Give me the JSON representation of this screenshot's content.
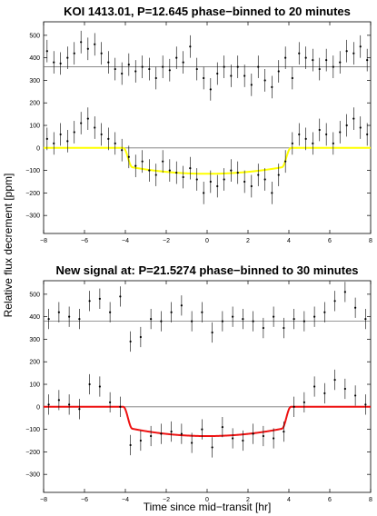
{
  "figure": {
    "ylabel": "Relative flux decrement [ppm]",
    "xlabel": "Time since mid−transit [hr]"
  },
  "chart_data": [
    {
      "type": "scatter",
      "title": "KOI 1413.01, P=12.645 phase−binned to 20 minutes",
      "xlabel": "",
      "ylabel": "Relative flux decrement [ppm]",
      "xlim": [
        -8,
        8
      ],
      "ylim": [
        -380,
        560
      ],
      "xticks": [
        "−8",
        "−6",
        "−4",
        "−2",
        "0",
        "2",
        "4",
        "6",
        "8"
      ],
      "yticks": [
        "500",
        "400",
        "300",
        "200",
        "100",
        "0",
        "−100",
        "−200",
        "−300"
      ],
      "ytick_values": [
        500,
        400,
        300,
        200,
        100,
        0,
        -100,
        -200,
        -300
      ],
      "grid": false,
      "model_color": "#ffff00",
      "model_depth": 115,
      "baselines": [
        360,
        0
      ],
      "series": [
        {
          "role": "offset residuals",
          "x": [
            -7.83,
            -7.5,
            -7.17,
            -6.83,
            -6.5,
            -6.17,
            -5.83,
            -5.5,
            -5.17,
            -4.83,
            -4.5,
            -4.17,
            -3.83,
            -3.5,
            -3.17,
            -2.83,
            -2.5,
            -2.17,
            -1.83,
            -1.5,
            -1.17,
            -0.83,
            -0.5,
            -0.17,
            0.17,
            0.5,
            0.83,
            1.17,
            1.5,
            1.83,
            2.17,
            2.5,
            2.83,
            3.17,
            3.5,
            3.83,
            4.17,
            4.5,
            4.83,
            5.17,
            5.5,
            5.83,
            6.17,
            6.5,
            6.83,
            7.17,
            7.5,
            7.83
          ],
          "y": [
            430,
            380,
            375,
            400,
            420,
            470,
            440,
            460,
            420,
            380,
            350,
            330,
            370,
            340,
            360,
            350,
            310,
            360,
            345,
            400,
            380,
            450,
            350,
            310,
            260,
            330,
            360,
            320,
            360,
            320,
            280,
            360,
            300,
            270,
            340,
            400,
            310,
            420,
            400,
            390,
            350,
            390,
            360,
            380,
            430,
            420,
            450,
            390
          ],
          "err": [
            50,
            50,
            50,
            50,
            50,
            50,
            50,
            50,
            50,
            50,
            50,
            50,
            50,
            50,
            50,
            50,
            50,
            50,
            50,
            50,
            50,
            50,
            50,
            50,
            50,
            50,
            50,
            50,
            50,
            50,
            50,
            50,
            50,
            50,
            50,
            50,
            50,
            50,
            50,
            50,
            50,
            50,
            50,
            50,
            50,
            50,
            50,
            50
          ]
        },
        {
          "role": "binned flux",
          "x": [
            -7.83,
            -7.5,
            -7.17,
            -6.83,
            -6.5,
            -6.17,
            -5.83,
            -5.5,
            -5.17,
            -4.83,
            -4.5,
            -4.17,
            -3.83,
            -3.5,
            -3.17,
            -2.83,
            -2.5,
            -2.17,
            -1.83,
            -1.5,
            -1.17,
            -0.83,
            -0.5,
            -0.17,
            0.17,
            0.5,
            0.83,
            1.17,
            1.5,
            1.83,
            2.17,
            2.5,
            2.83,
            3.17,
            3.5,
            3.83,
            4.17,
            4.5,
            4.83,
            5.17,
            5.5,
            5.83,
            6.17,
            6.5,
            6.83,
            7.17,
            7.5,
            7.83
          ],
          "y": [
            40,
            20,
            60,
            30,
            70,
            110,
            130,
            90,
            60,
            40,
            20,
            -10,
            -40,
            -80,
            -60,
            -100,
            -120,
            -60,
            -100,
            -110,
            -130,
            -90,
            -140,
            -200,
            -150,
            -170,
            -140,
            -100,
            -110,
            -150,
            -170,
            -120,
            -140,
            -200,
            -120,
            -60,
            20,
            60,
            40,
            20,
            80,
            60,
            20,
            70,
            100,
            130,
            90,
            60
          ],
          "err": [
            50,
            50,
            50,
            50,
            50,
            50,
            50,
            50,
            50,
            50,
            50,
            50,
            50,
            50,
            50,
            50,
            50,
            50,
            50,
            50,
            50,
            50,
            50,
            50,
            50,
            50,
            50,
            50,
            50,
            50,
            50,
            50,
            50,
            50,
            50,
            50,
            50,
            50,
            50,
            50,
            50,
            50,
            50,
            50,
            50,
            50,
            50,
            50
          ]
        }
      ]
    },
    {
      "type": "scatter",
      "title": "New signal at: P=21.5274 phase−binned to 30 minutes",
      "xlabel": "Time since mid−transit [hr]",
      "ylabel": "Relative flux decrement [ppm]",
      "xlim": [
        -8,
        8
      ],
      "ylim": [
        -380,
        560
      ],
      "xticks": [
        "−8",
        "−6",
        "−4",
        "−2",
        "0",
        "2",
        "4",
        "6",
        "8"
      ],
      "yticks": [
        "500",
        "400",
        "300",
        "200",
        "100",
        "0",
        "−100",
        "−200",
        "−300"
      ],
      "ytick_values": [
        500,
        400,
        300,
        200,
        100,
        0,
        -100,
        -200,
        -300
      ],
      "grid": false,
      "model_color": "#ee1111",
      "model_depth": 130,
      "baselines": [
        380,
        0
      ],
      "series": [
        {
          "role": "offset residuals",
          "x": [
            -7.75,
            -7.25,
            -6.75,
            -6.25,
            -5.75,
            -5.25,
            -4.75,
            -4.25,
            -3.75,
            -3.25,
            -2.75,
            -2.25,
            -1.75,
            -1.25,
            -0.75,
            -0.25,
            0.25,
            0.75,
            1.25,
            1.75,
            2.25,
            2.75,
            3.25,
            3.75,
            4.25,
            4.75,
            5.25,
            5.75,
            6.25,
            6.75,
            7.25,
            7.75
          ],
          "y": [
            390,
            420,
            400,
            390,
            470,
            480,
            420,
            490,
            290,
            310,
            390,
            380,
            420,
            450,
            380,
            420,
            330,
            380,
            400,
            390,
            380,
            350,
            400,
            350,
            390,
            380,
            400,
            420,
            470,
            510,
            440,
            390
          ],
          "err": [
            45,
            45,
            45,
            45,
            45,
            45,
            45,
            45,
            45,
            45,
            45,
            45,
            45,
            45,
            45,
            45,
            45,
            45,
            45,
            45,
            45,
            45,
            45,
            45,
            45,
            45,
            45,
            45,
            45,
            45,
            45,
            45
          ]
        },
        {
          "role": "binned flux",
          "x": [
            -7.75,
            -7.25,
            -6.75,
            -6.25,
            -5.75,
            -5.25,
            -4.75,
            -4.25,
            -3.75,
            -3.25,
            -2.75,
            -2.25,
            -1.75,
            -1.25,
            -0.75,
            -0.25,
            0.25,
            0.75,
            1.25,
            1.75,
            2.25,
            2.75,
            3.25,
            3.75,
            4.25,
            4.75,
            5.25,
            5.75,
            6.25,
            6.75,
            7.25,
            7.75
          ],
          "y": [
            10,
            30,
            10,
            -10,
            100,
            90,
            20,
            0,
            -170,
            -150,
            -130,
            -120,
            -110,
            -120,
            -160,
            -100,
            -180,
            -90,
            -140,
            -150,
            -120,
            -130,
            -140,
            -110,
            0,
            20,
            90,
            60,
            120,
            80,
            50,
            10
          ],
          "err": [
            45,
            45,
            45,
            45,
            45,
            45,
            45,
            45,
            45,
            45,
            45,
            45,
            45,
            45,
            45,
            45,
            45,
            45,
            45,
            45,
            45,
            45,
            45,
            45,
            45,
            45,
            45,
            45,
            45,
            45,
            45,
            45
          ]
        }
      ]
    }
  ]
}
